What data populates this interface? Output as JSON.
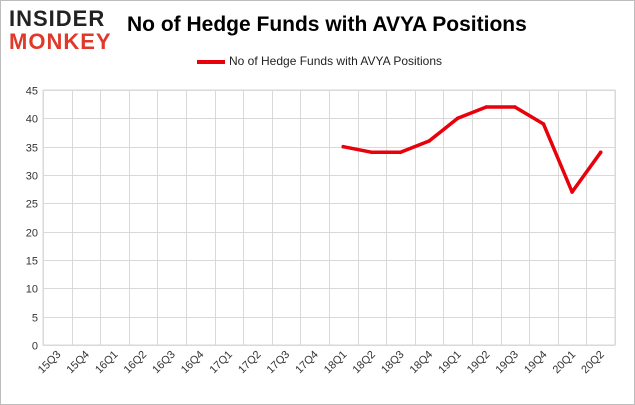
{
  "brand": {
    "line1": "INSIDER",
    "line2": "MONKEY"
  },
  "chart_data": {
    "type": "line",
    "title": "No of Hedge Funds with AVYA Positions",
    "xlabel": "",
    "ylabel": "",
    "legend_position": "top-center",
    "grid": true,
    "ylim": [
      0,
      45
    ],
    "yticks": [
      0,
      5,
      10,
      15,
      20,
      25,
      30,
      35,
      40,
      45
    ],
    "categories": [
      "15Q3",
      "15Q4",
      "16Q1",
      "16Q2",
      "16Q3",
      "16Q4",
      "17Q1",
      "17Q2",
      "17Q3",
      "17Q4",
      "18Q1",
      "18Q2",
      "18Q3",
      "18Q4",
      "19Q1",
      "19Q2",
      "19Q3",
      "19Q4",
      "20Q1",
      "20Q2"
    ],
    "series": [
      {
        "name": "No of Hedge Funds with AVYA Positions",
        "color": "#e8000b",
        "values": [
          null,
          null,
          null,
          null,
          null,
          null,
          null,
          null,
          null,
          null,
          35,
          34,
          34,
          36,
          40,
          42,
          42,
          39,
          27,
          34
        ]
      }
    ]
  }
}
